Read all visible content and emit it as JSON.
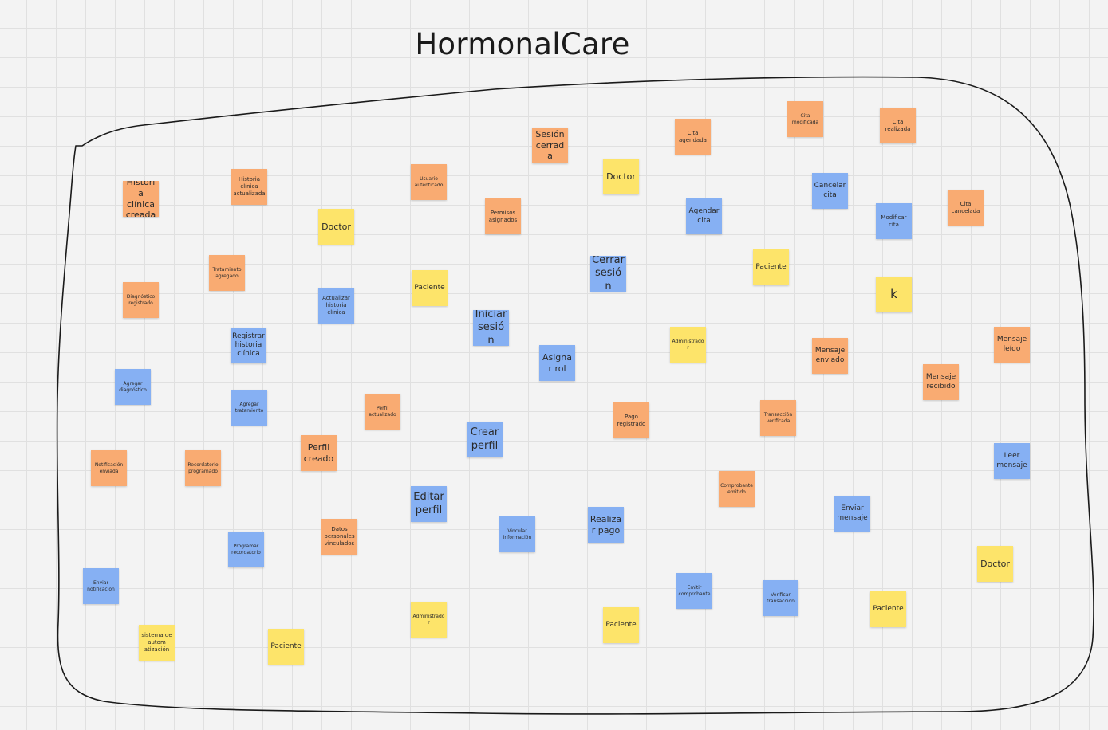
{
  "board": {
    "title": "HormonalCare"
  },
  "colors": {
    "event": "#f9ab72",
    "command": "#86b0f3",
    "actor": "#fde46a",
    "boundary_line": "#1a1a1a"
  },
  "stickies": [
    {
      "id": "historia-clinica-creada",
      "text": "Historia clínica creada",
      "type": "event"
    },
    {
      "id": "historia-clinica-actualizada",
      "text": "Historia clínica actualizada",
      "type": "event"
    },
    {
      "id": "usuario-autenticado",
      "text": "Usuario autenticado",
      "type": "event"
    },
    {
      "id": "sesion-cerrada",
      "text": "Sesión cerrada",
      "type": "event"
    },
    {
      "id": "doctor-top",
      "text": "Doctor",
      "type": "actor"
    },
    {
      "id": "cita-agendada",
      "text": "Cita agendada",
      "type": "event"
    },
    {
      "id": "cita-modificada",
      "text": "Cita modificada",
      "type": "event"
    },
    {
      "id": "cita-realizada",
      "text": "Cita realizada",
      "type": "event"
    },
    {
      "id": "doctor-left",
      "text": "Doctor",
      "type": "actor"
    },
    {
      "id": "permisos-asignados",
      "text": "Permisos asignados",
      "type": "event"
    },
    {
      "id": "agendar-cita",
      "text": "Agendar cita",
      "type": "command"
    },
    {
      "id": "cancelar-cita",
      "text": "Cancelar cita",
      "type": "command"
    },
    {
      "id": "modificar-cita",
      "text": "Modificar cita",
      "type": "command"
    },
    {
      "id": "cita-cancelada",
      "text": "Cita cancelada",
      "type": "event"
    },
    {
      "id": "tratamiento-agregado",
      "text": "Tratamiento agregado",
      "type": "event"
    },
    {
      "id": "paciente-mid",
      "text": "Paciente",
      "type": "actor"
    },
    {
      "id": "cerrar-sesion",
      "text": "Cerrar sesión",
      "type": "command"
    },
    {
      "id": "paciente-right",
      "text": "Paciente",
      "type": "actor"
    },
    {
      "id": "k-note",
      "text": "k",
      "type": "actor"
    },
    {
      "id": "diagnostico-registrado",
      "text": "Diagnóstico registrado",
      "type": "event"
    },
    {
      "id": "actualizar-historia-clinica",
      "text": "Actualizar historia clínica",
      "type": "command"
    },
    {
      "id": "iniciar-sesion",
      "text": "Iniciar sesión",
      "type": "command"
    },
    {
      "id": "registrar-historia-clinica",
      "text": "Registrar historia clínica",
      "type": "command"
    },
    {
      "id": "administrador-top",
      "text": "Administrador",
      "type": "actor"
    },
    {
      "id": "asignar-rol",
      "text": "Asignar rol",
      "type": "command"
    },
    {
      "id": "mensaje-enviado",
      "text": "Mensaje enviado",
      "type": "event"
    },
    {
      "id": "mensaje-leido",
      "text": "Mensaje leído",
      "type": "event"
    },
    {
      "id": "mensaje-recibido",
      "text": "Mensaje recibido",
      "type": "event"
    },
    {
      "id": "agregar-diagnostico",
      "text": "Agregar diagnóstico",
      "type": "command"
    },
    {
      "id": "agregar-tratamiento",
      "text": "Agregar tratamiento",
      "type": "command"
    },
    {
      "id": "perfil-actualizado",
      "text": "Perfil actualizado",
      "type": "event"
    },
    {
      "id": "pago-registrado",
      "text": "Pago registrado",
      "type": "event"
    },
    {
      "id": "transaccion-verificada",
      "text": "Transacción verificada",
      "type": "event"
    },
    {
      "id": "crear-perfil",
      "text": "Crear perfil",
      "type": "command"
    },
    {
      "id": "perfil-creado",
      "text": "Perfil creado",
      "type": "event"
    },
    {
      "id": "notificacion-enviada",
      "text": "Notificación enviada",
      "type": "event"
    },
    {
      "id": "recordatorio-programado",
      "text": "Recordatorio programado",
      "type": "event"
    },
    {
      "id": "leer-mensaje",
      "text": "Leer mensaje",
      "type": "command"
    },
    {
      "id": "comprobante-emitido",
      "text": "Comprobante emitido",
      "type": "event"
    },
    {
      "id": "editar-perfil",
      "text": "Editar perfil",
      "type": "command"
    },
    {
      "id": "enviar-mensaje",
      "text": "Enviar mensaje",
      "type": "command"
    },
    {
      "id": "vincular-informacion",
      "text": "Vincular información",
      "type": "command"
    },
    {
      "id": "realizar-pago",
      "text": "Realizar pago",
      "type": "command"
    },
    {
      "id": "datos-personales-vinculados",
      "text": "Datos personales vinculados",
      "type": "event"
    },
    {
      "id": "programar-recordatorio",
      "text": "Programar recordatorio",
      "type": "command"
    },
    {
      "id": "doctor-right",
      "text": "Doctor",
      "type": "actor"
    },
    {
      "id": "enviar-notificacion",
      "text": "Enviar notificación",
      "type": "command"
    },
    {
      "id": "emitir-comprobante",
      "text": "Emitir comprobante",
      "type": "command"
    },
    {
      "id": "verificar-transaccion",
      "text": "Verificar transacción",
      "type": "command"
    },
    {
      "id": "administrador-bottom",
      "text": "Administrador",
      "type": "actor"
    },
    {
      "id": "paciente-bottom-right",
      "text": "Paciente",
      "type": "actor"
    },
    {
      "id": "paciente-bottom-mid",
      "text": "Paciente",
      "type": "actor"
    },
    {
      "id": "sistema-automatizacion",
      "text": "sistema de autom atización",
      "type": "actor"
    },
    {
      "id": "paciente-bottom-left",
      "text": "Paciente",
      "type": "actor"
    }
  ]
}
